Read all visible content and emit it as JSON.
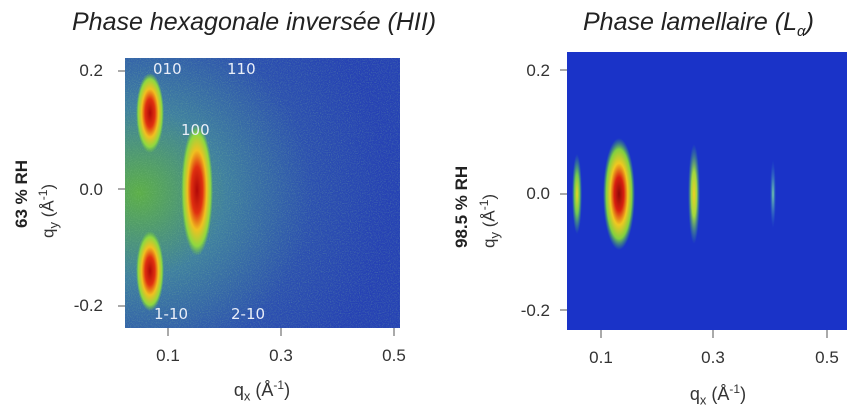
{
  "left": {
    "title": "Phase hexagonale inversée (HII)",
    "humidity_label": "63 % RH",
    "y_axis": {
      "label_main": "q",
      "label_sub": "y",
      "label_unit_pre": " (Å",
      "label_unit_sup": "-1",
      "label_unit_post": ")"
    },
    "x_axis": {
      "label_main": "q",
      "label_sub": "x",
      "label_unit_pre": " (Å",
      "label_unit_sup": "-1",
      "label_unit_post": ")"
    },
    "y_ticks": [
      "0.2",
      "0.0",
      "-0.2"
    ],
    "x_ticks": [
      "0.1",
      "0.3",
      "0.5"
    ],
    "peak_labels": [
      "010",
      "110",
      "100",
      "1-10",
      "2-10"
    ]
  },
  "right": {
    "title_main": "Phase lamellaire (L",
    "title_sub": "α",
    "title_close": ")",
    "humidity_label": "98.5 % RH",
    "y_axis": {
      "label_main": "q",
      "label_sub": "y",
      "label_unit_pre": " (Å",
      "label_unit_sup": "-1",
      "label_unit_post": ")"
    },
    "x_axis": {
      "label_main": "q",
      "label_sub": "x",
      "label_unit_pre": " (Å",
      "label_unit_sup": "-1",
      "label_unit_post": ")"
    },
    "y_ticks": [
      "0.2",
      "0.0",
      "-0.2"
    ],
    "x_ticks": [
      "0.1",
      "0.3",
      "0.5"
    ]
  },
  "colors": {
    "background_blue": "#2a48b8",
    "deep_blue": "#1a33c8",
    "green": "#4fbf3a",
    "yellow": "#e8d820",
    "red": "#c21a10"
  }
}
